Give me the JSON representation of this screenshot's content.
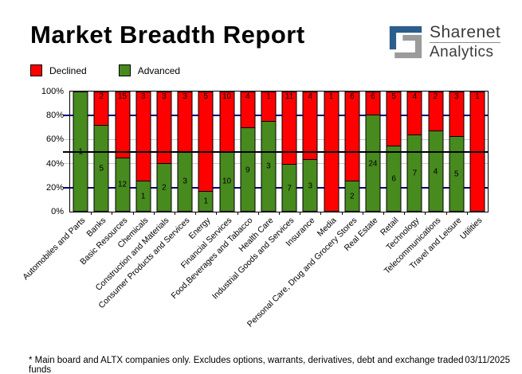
{
  "page": {
    "title": "Market Breadth Report",
    "logo": {
      "name": "Sharenet",
      "division": "Analytics"
    },
    "footnote": "* Main board and ALTX companies only. Excludes options, warrants, derivatives, debt and exchange traded funds",
    "date": "03/11/2025"
  },
  "legend": {
    "declined": {
      "label": "Declined",
      "color": "#ff0000"
    },
    "advanced": {
      "label": "Advanced",
      "color": "#478a1e"
    }
  },
  "chart_data": {
    "type": "bar",
    "subtype": "stacked-percent-column",
    "title": "Market Breadth Report",
    "legend_position": "top-left",
    "categories": [
      "Automobiles and Parts",
      "Banks",
      "Basic Resources",
      "Chemicals",
      "Construction and Materials",
      "Consumer Products and Services",
      "Energy",
      "Financial Services",
      "Food,Beverages and Tabacco",
      "Health Care",
      "Industrial Goods and Services",
      "Insurance",
      "Media",
      "Personal Care, Drug and Grocery Stores",
      "Real Estate",
      "Retail",
      "Technology",
      "Telecommunications",
      "Travel and Leisure",
      "Utilities"
    ],
    "series": [
      {
        "name": "Declined",
        "color": "#ff0000",
        "values": [
          0,
          2,
          15,
          3,
          3,
          3,
          5,
          10,
          4,
          1,
          11,
          4,
          1,
          6,
          6,
          5,
          4,
          2,
          3,
          1
        ]
      },
      {
        "name": "Advanced",
        "color": "#478a1e",
        "values": [
          1,
          5,
          12,
          1,
          2,
          3,
          1,
          10,
          9,
          3,
          7,
          3,
          0,
          2,
          24,
          6,
          7,
          4,
          5,
          0
        ]
      }
    ],
    "y_axis": {
      "ticks": [
        "0%",
        "20%",
        "40%",
        "60%",
        "80%",
        "100%"
      ],
      "min": 0,
      "max": 100,
      "unit": "percent"
    },
    "gridlines": [
      {
        "value": 20,
        "color": "#000080",
        "weight": 2
      },
      {
        "value": 40,
        "color": "#c9c9c9",
        "weight": 1
      },
      {
        "value": 50,
        "color": "#000000",
        "weight": 2
      },
      {
        "value": 60,
        "color": "#c9c9c9",
        "weight": 1
      },
      {
        "value": 80,
        "color": "#000080",
        "weight": 2
      }
    ]
  }
}
